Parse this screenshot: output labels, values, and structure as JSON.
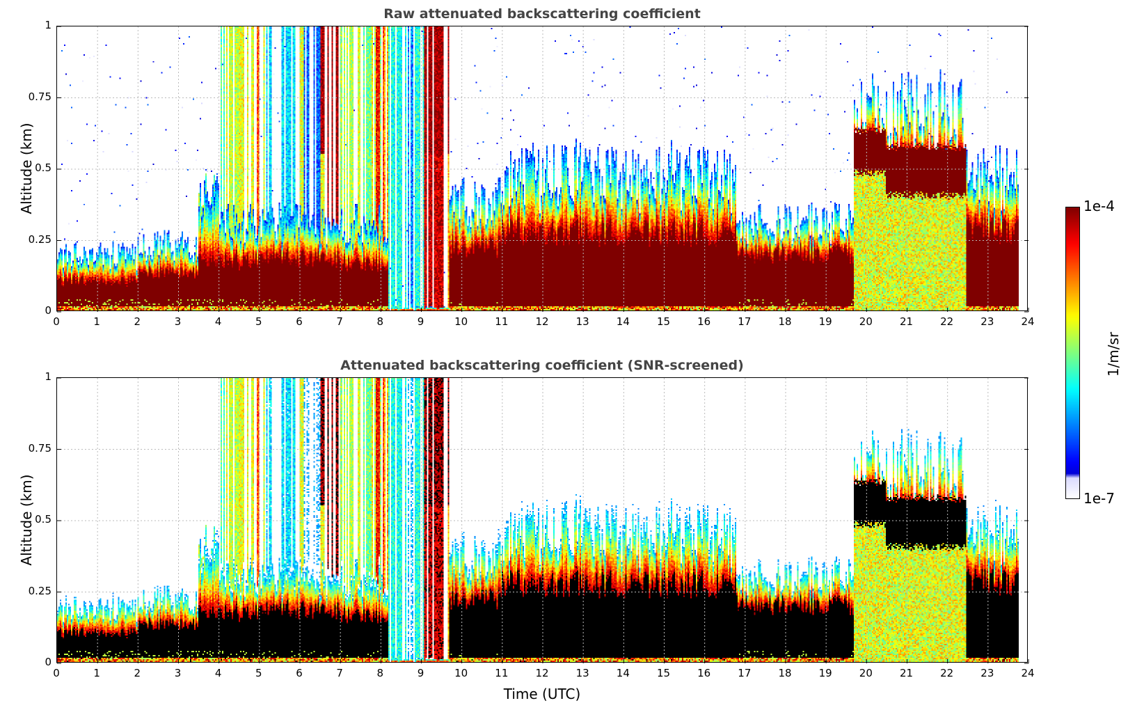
{
  "chart_data": {
    "type": "heatmap",
    "plots": [
      {
        "title": "Raw attenuated backscattering coefficient",
        "screened": false
      },
      {
        "title": "Attenuated backscattering coefficient (SNR-screened)",
        "screened": true
      }
    ],
    "xlabel": "Time (UTC)",
    "ylabel": "Altitude (km)",
    "xlim": [
      0,
      24
    ],
    "ylim": [
      0,
      1
    ],
    "xticks": [
      "0",
      "1",
      "2",
      "3",
      "4",
      "5",
      "6",
      "7",
      "8",
      "9",
      "10",
      "11",
      "12",
      "13",
      "14",
      "15",
      "16",
      "17",
      "18",
      "19",
      "20",
      "21",
      "22",
      "23",
      "24"
    ],
    "yticks": [
      "0",
      "0.25",
      "0.5",
      "0.75",
      "1"
    ],
    "grid": true,
    "colorbar": {
      "label": "1/m/sr",
      "min_label": "1e-7",
      "max_label": "1e-4",
      "scale": "log",
      "colormap": "jet"
    },
    "data_end_hour": 23.8,
    "segments_log10": [
      {
        "t0": 0,
        "t1": 2,
        "dense_top": 0.1,
        "top": 0.19,
        "upper": null
      },
      {
        "t0": 2,
        "t1": 3.5,
        "dense_top": 0.13,
        "top": 0.22,
        "upper": null
      },
      {
        "t0": 3.5,
        "t1": 4,
        "dense_top": 0.17,
        "top": 0.38,
        "upper": -5.8,
        "upper_top": 0.5
      },
      {
        "t0": 4,
        "t1": 5,
        "dense_top": 0.17,
        "top": 0.3,
        "upper": -5.2,
        "upper_top": 1.0
      },
      {
        "t0": 5,
        "t1": 6.5,
        "dense_top": 0.18,
        "top": 0.3,
        "upper": -5.8,
        "upper_top": 1.0
      },
      {
        "t0": 6.5,
        "t1": 7,
        "dense_top": 0.18,
        "top": 0.3,
        "upper": -4.6,
        "upper_top": 1.0
      },
      {
        "t0": 7,
        "t1": 8.2,
        "dense_top": 0.16,
        "top": 0.3,
        "upper": -5.0,
        "upper_top": 1.0
      },
      {
        "t0": 8.2,
        "t1": 9.1,
        "dense_top": 0.0,
        "top": 0.0,
        "upper": -6.0,
        "upper_top": 1.0
      },
      {
        "t0": 9.1,
        "t1": 9.7,
        "dense_top": 0.0,
        "top": 0.0,
        "upper": -4.4,
        "upper_top": 1.0
      },
      {
        "t0": 9.7,
        "t1": 11,
        "dense_top": 0.22,
        "top": 0.35,
        "upper": null
      },
      {
        "t0": 11,
        "t1": 16.8,
        "dense_top": 0.27,
        "top": 0.45,
        "upper": null
      },
      {
        "t0": 16.8,
        "t1": 19.7,
        "dense_top": 0.2,
        "top": 0.3,
        "upper": null
      },
      {
        "t0": 19.7,
        "t1": 20.5,
        "dense_top": 0.25,
        "top": 0.65,
        "elevated": [
          0.5,
          0.62
        ]
      },
      {
        "t0": 20.5,
        "t1": 22.5,
        "dense_top": 0.0,
        "top": 0.65,
        "elevated": [
          0.42,
          0.56
        ]
      },
      {
        "t0": 22.5,
        "t1": 23.8,
        "dense_top": 0.28,
        "top": 0.45,
        "upper": null
      }
    ]
  }
}
